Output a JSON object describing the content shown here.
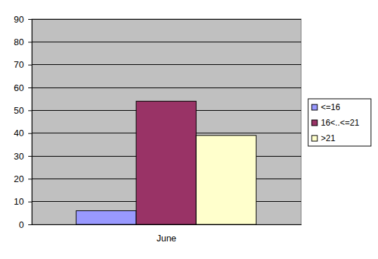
{
  "chart_data": {
    "type": "bar",
    "categories": [
      "June"
    ],
    "series": [
      {
        "name": "<=16",
        "color": "#9999ff",
        "values": [
          6
        ]
      },
      {
        "name": "16<..<=21",
        "color": "#993366",
        "values": [
          54
        ]
      },
      {
        "name": ">21",
        "color": "#ffffcc",
        "values": [
          39
        ]
      }
    ],
    "ylim": [
      0,
      90
    ],
    "yticks": [
      0,
      10,
      20,
      30,
      40,
      50,
      60,
      70,
      80,
      90
    ],
    "grid": true,
    "legend": "right"
  }
}
